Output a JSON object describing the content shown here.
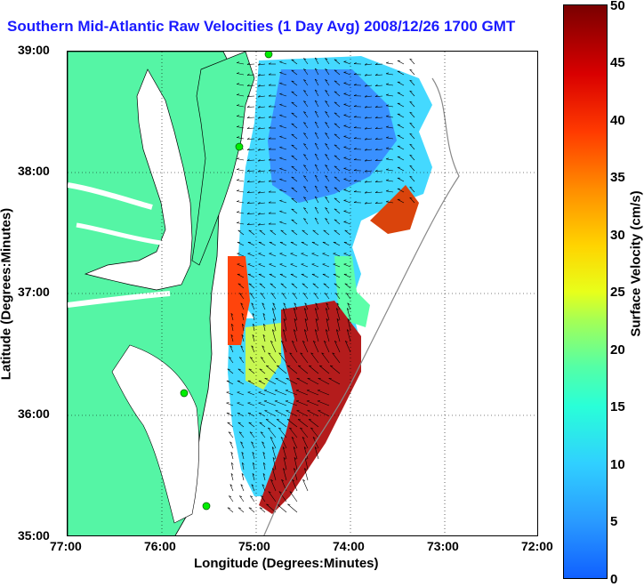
{
  "title": "Southern Mid-Atlantic Raw Velocities (1 Day Avg) 2008/12/26 1700 GMT",
  "xlabel": "Longitude (Degrees:Minutes)",
  "ylabel": "Latitude (Degrees:Minutes)",
  "x_ticks": [
    "77:00",
    "76:00",
    "75:00",
    "74:00",
    "73:00",
    "72:00"
  ],
  "y_ticks": [
    "39:00",
    "38:00",
    "37:00",
    "36:00",
    "35:00"
  ],
  "colorbar": {
    "label": "Surface Velocity (cm/s)",
    "ticks": [
      "0",
      "5",
      "10",
      "15",
      "20",
      "25",
      "30",
      "35",
      "40",
      "45",
      "50"
    ],
    "range": [
      0,
      50
    ]
  },
  "colors": {
    "land": "#55f5a5",
    "title": "#1a1aff",
    "station": "#00ee00"
  },
  "axes": {
    "lon_range": [
      -77,
      -72
    ],
    "lat_range": [
      35,
      39
    ],
    "grid": "dotted"
  }
}
